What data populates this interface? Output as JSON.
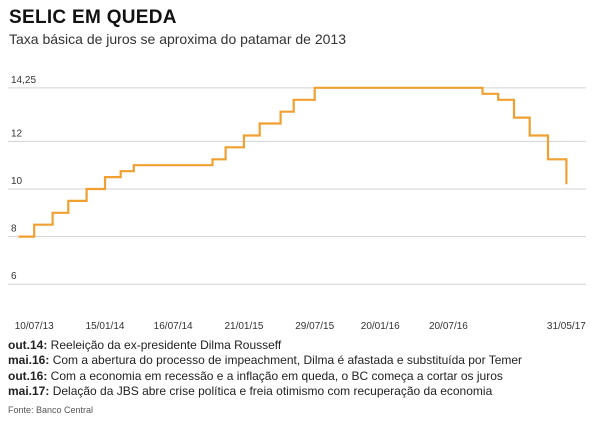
{
  "title": "SELIC EM QUEDA",
  "subtitle": "Taxa básica de juros se aproxima do patamar de 2013",
  "chart_data": {
    "type": "line",
    "line_shape": "step",
    "grid": "horizontal",
    "color": "#f0a030",
    "ylim": [
      5,
      15
    ],
    "yticks": [
      {
        "value": 14.25,
        "label": "14,25"
      },
      {
        "value": 12,
        "label": "12"
      },
      {
        "value": 10,
        "label": "10"
      },
      {
        "value": 8,
        "label": "8"
      },
      {
        "value": 6,
        "label": "6"
      }
    ],
    "xlim": [
      "2013-05-01",
      "2017-06-15"
    ],
    "xticks": [
      {
        "value": "2013-07-10",
        "label": "10/07/13"
      },
      {
        "value": "2014-01-15",
        "label": "15/01/14"
      },
      {
        "value": "2014-07-16",
        "label": "16/07/14"
      },
      {
        "value": "2015-01-21",
        "label": "21/01/15"
      },
      {
        "value": "2015-07-29",
        "label": "29/07/15"
      },
      {
        "value": "2016-01-20",
        "label": "20/01/16"
      },
      {
        "value": "2016-07-20",
        "label": "20/07/16"
      },
      {
        "value": "2017-05-31",
        "label": "31/05/17"
      }
    ],
    "series": [
      {
        "values": [
          {
            "x": "2013-05-29",
            "y": 8.0
          },
          {
            "x": "2013-07-10",
            "y": 8.5
          },
          {
            "x": "2013-08-28",
            "y": 9.0
          },
          {
            "x": "2013-10-09",
            "y": 9.5
          },
          {
            "x": "2013-11-27",
            "y": 10.0
          },
          {
            "x": "2014-01-15",
            "y": 10.5
          },
          {
            "x": "2014-02-26",
            "y": 10.75
          },
          {
            "x": "2014-04-02",
            "y": 11.0
          },
          {
            "x": "2014-10-29",
            "y": 11.25
          },
          {
            "x": "2014-12-03",
            "y": 11.75
          },
          {
            "x": "2015-01-21",
            "y": 12.25
          },
          {
            "x": "2015-03-04",
            "y": 12.75
          },
          {
            "x": "2015-04-29",
            "y": 13.25
          },
          {
            "x": "2015-06-03",
            "y": 13.75
          },
          {
            "x": "2015-07-29",
            "y": 14.25
          },
          {
            "x": "2016-10-19",
            "y": 14.0
          },
          {
            "x": "2016-11-30",
            "y": 13.75
          },
          {
            "x": "2017-01-11",
            "y": 13.0
          },
          {
            "x": "2017-02-22",
            "y": 12.25
          },
          {
            "x": "2017-04-12",
            "y": 11.25
          },
          {
            "x": "2017-05-31",
            "y": 10.25
          }
        ]
      }
    ]
  },
  "notes": [
    {
      "date": "out.14:",
      "text": " Reeleição da ex-presidente Dilma Rousseff"
    },
    {
      "date": "mai.16:",
      "text": " Com a abertura do processo de impeachment, Dilma é afastada e substituída por Temer"
    },
    {
      "date": "out.16:",
      "text": " Com a economia em recessão e a inflação em queda, o BC começa a cortar os juros"
    },
    {
      "date": "mai.17:",
      "text": " Delação da JBS abre crise política e freia otimismo com recuperação da economia"
    }
  ],
  "source": "Fonte: Banco Central"
}
